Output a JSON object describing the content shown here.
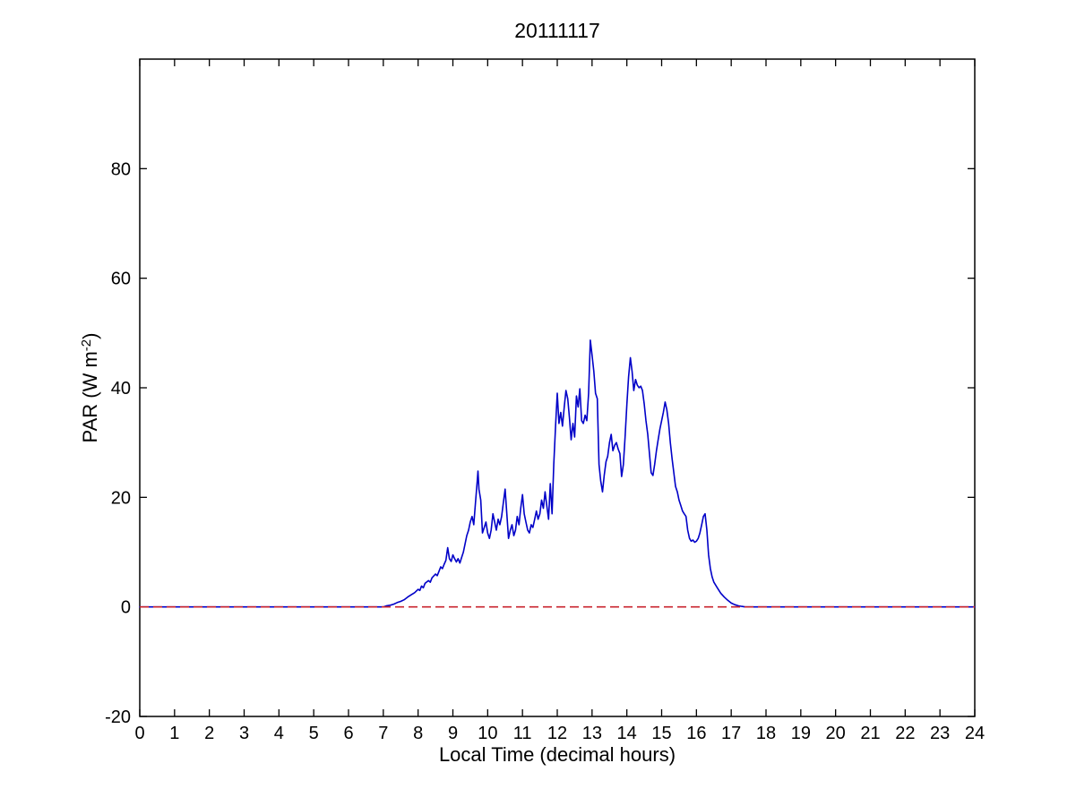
{
  "chart_data": {
    "type": "line",
    "title": "20111117",
    "x_axis": {
      "label": "Local Time (decimal hours)",
      "range": [
        0,
        24
      ],
      "ticks": [
        0,
        1,
        2,
        3,
        4,
        5,
        6,
        7,
        8,
        9,
        10,
        11,
        12,
        13,
        14,
        15,
        16,
        17,
        18,
        19,
        20,
        21,
        22,
        23,
        24
      ]
    },
    "y_axis": {
      "label": "PAR (W m^-2)",
      "label_prefix": "PAR (W m",
      "label_sup": "-2",
      "label_suffix": ")",
      "range": [
        -20,
        100
      ],
      "ticks": [
        -20,
        0,
        20,
        40,
        60,
        80
      ]
    },
    "grid": false,
    "legend": "none",
    "axis_color": "#000000",
    "zero_line": {
      "value": 0,
      "color": "#c8232d",
      "style": "dashed"
    },
    "series": [
      {
        "name": "PAR",
        "color": "#0000c8",
        "x": [
          0,
          7.0,
          7.1,
          7.2,
          7.3,
          7.4,
          7.5,
          7.6,
          7.7,
          7.8,
          7.9,
          8.0,
          8.05,
          8.1,
          8.15,
          8.2,
          8.3,
          8.35,
          8.4,
          8.5,
          8.55,
          8.6,
          8.65,
          8.7,
          8.75,
          8.8,
          8.85,
          8.9,
          8.95,
          9.0,
          9.05,
          9.1,
          9.15,
          9.2,
          9.25,
          9.3,
          9.35,
          9.4,
          9.45,
          9.5,
          9.55,
          9.6,
          9.65,
          9.7,
          9.72,
          9.75,
          9.8,
          9.85,
          9.9,
          9.95,
          10.0,
          10.05,
          10.1,
          10.15,
          10.2,
          10.25,
          10.3,
          10.35,
          10.4,
          10.45,
          10.5,
          10.55,
          10.6,
          10.65,
          10.7,
          10.75,
          10.8,
          10.85,
          10.9,
          10.95,
          11.0,
          11.05,
          11.1,
          11.15,
          11.2,
          11.25,
          11.3,
          11.35,
          11.4,
          11.45,
          11.5,
          11.55,
          11.6,
          11.65,
          11.7,
          11.75,
          11.8,
          11.85,
          11.9,
          11.95,
          12.0,
          12.05,
          12.1,
          12.15,
          12.2,
          12.25,
          12.3,
          12.35,
          12.4,
          12.45,
          12.5,
          12.55,
          12.6,
          12.65,
          12.7,
          12.75,
          12.8,
          12.85,
          12.9,
          12.95,
          13.0,
          13.05,
          13.1,
          13.15,
          13.2,
          13.25,
          13.3,
          13.35,
          13.4,
          13.45,
          13.5,
          13.55,
          13.6,
          13.65,
          13.7,
          13.75,
          13.8,
          13.85,
          13.9,
          13.95,
          14.0,
          14.05,
          14.1,
          14.15,
          14.2,
          14.25,
          14.3,
          14.35,
          14.4,
          14.45,
          14.5,
          14.55,
          14.6,
          14.65,
          14.7,
          14.75,
          14.8,
          14.85,
          14.9,
          14.95,
          15.0,
          15.05,
          15.1,
          15.15,
          15.2,
          15.25,
          15.3,
          15.35,
          15.4,
          15.45,
          15.5,
          15.55,
          15.6,
          15.65,
          15.7,
          15.75,
          15.8,
          15.85,
          15.9,
          15.95,
          16.0,
          16.05,
          16.1,
          16.15,
          16.2,
          16.25,
          16.3,
          16.35,
          16.4,
          16.45,
          16.5,
          16.6,
          16.7,
          16.8,
          16.9,
          17.0,
          17.1,
          17.2,
          17.3,
          17.4,
          24
        ],
        "y": [
          0,
          0,
          0.2,
          0.3,
          0.5,
          0.8,
          1.0,
          1.3,
          1.8,
          2.2,
          2.6,
          3.2,
          3.0,
          3.8,
          3.5,
          4.3,
          4.8,
          4.5,
          5.3,
          6.0,
          5.7,
          6.5,
          7.3,
          7.0,
          7.8,
          8.5,
          10.8,
          8.8,
          8.3,
          9.5,
          8.8,
          8.2,
          8.8,
          8.0,
          9.0,
          10.0,
          11.5,
          13.0,
          14.0,
          15.5,
          16.5,
          15.0,
          19.0,
          23.0,
          24.8,
          21.5,
          19.5,
          13.5,
          14.5,
          15.5,
          13.5,
          12.5,
          14.0,
          17.0,
          15.5,
          14.0,
          16.0,
          15.0,
          16.5,
          19.0,
          21.5,
          17.0,
          12.5,
          14.0,
          15.0,
          13.0,
          14.0,
          16.5,
          15.0,
          18.0,
          20.5,
          17.0,
          15.5,
          14.0,
          13.5,
          15.0,
          14.5,
          16.0,
          17.5,
          16.0,
          17.0,
          19.5,
          18.0,
          21.0,
          18.5,
          16.0,
          22.5,
          17.0,
          26.0,
          33.0,
          39.0,
          33.5,
          35.5,
          33.0,
          36.5,
          39.5,
          38.0,
          34.5,
          30.5,
          33.5,
          31.0,
          38.5,
          36.5,
          39.8,
          34.0,
          33.5,
          35.0,
          34.0,
          39.0,
          48.7,
          46.0,
          43.0,
          39.0,
          38.0,
          26.0,
          23.0,
          21.0,
          24.0,
          26.5,
          27.5,
          30.0,
          31.5,
          28.5,
          29.5,
          30.0,
          28.8,
          28.0,
          23.8,
          26.0,
          31.0,
          37.0,
          42.0,
          45.5,
          43.0,
          39.5,
          41.5,
          40.5,
          40.0,
          40.3,
          39.5,
          37.0,
          34.0,
          31.5,
          28.0,
          24.5,
          24.0,
          26.0,
          28.5,
          30.5,
          32.5,
          34.0,
          35.5,
          37.4,
          36.0,
          33.5,
          30.0,
          27.0,
          24.5,
          22.0,
          21.0,
          19.5,
          18.5,
          17.5,
          17.0,
          16.5,
          14.0,
          12.5,
          12.0,
          12.2,
          11.8,
          12.0,
          12.5,
          13.5,
          15.0,
          16.5,
          17.0,
          14.0,
          9.5,
          7.0,
          5.5,
          4.5,
          3.5,
          2.5,
          1.8,
          1.2,
          0.7,
          0.4,
          0.2,
          0.1,
          0,
          0
        ]
      }
    ]
  }
}
